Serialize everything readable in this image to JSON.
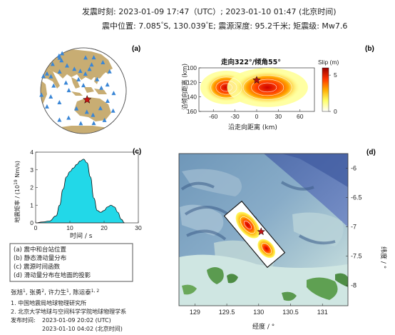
{
  "header": {
    "line1_label": "发震时刻: 2023-01-09 17:47（UTC）;   2023-01-10  01:47 (北京时间)",
    "epicenter_prefix": "震中位置: 7.085",
    "epicenter_lat_hemi": "S,  130.039",
    "epicenter_lon_hemi": "E;  震源深度: 95.2千米; 矩震级: Mw7.6",
    "degree_sign": "°"
  },
  "panel_labels": {
    "a": "(a)",
    "b": "(b)",
    "c": "(c)",
    "d": "(d)"
  },
  "panel_a": {
    "land_color": "#c8ad73",
    "ocean_color": "#ffffff",
    "station_color": "#3a86d6",
    "epicenter_color": "#cc1111",
    "stations": [
      {
        "lon": 30,
        "lat": 60
      },
      {
        "lon": 42,
        "lat": 55
      },
      {
        "lon": 60,
        "lat": 52
      },
      {
        "lon": 75,
        "lat": 48
      },
      {
        "lon": 95,
        "lat": 40
      },
      {
        "lon": 110,
        "lat": 35
      },
      {
        "lon": 120,
        "lat": 32
      },
      {
        "lon": 128,
        "lat": 28
      },
      {
        "lon": 135,
        "lat": 35
      },
      {
        "lon": 140,
        "lat": 42
      },
      {
        "lon": 145,
        "lat": 20
      },
      {
        "lon": 150,
        "lat": 8
      },
      {
        "lon": 160,
        "lat": 12
      },
      {
        "lon": 170,
        "lat": 0
      },
      {
        "lon": 118,
        "lat": 20
      },
      {
        "lon": 100,
        "lat": 15
      },
      {
        "lon": 80,
        "lat": 10
      },
      {
        "lon": 70,
        "lat": 22
      },
      {
        "lon": 55,
        "lat": 25
      },
      {
        "lon": 40,
        "lat": 20
      },
      {
        "lon": 85,
        "lat": 30
      },
      {
        "lon": 105,
        "lat": 5
      },
      {
        "lon": 125,
        "lat": 12
      },
      {
        "lon": 115,
        "lat": -20
      },
      {
        "lon": 130,
        "lat": -25
      },
      {
        "lon": 140,
        "lat": -30
      },
      {
        "lon": 150,
        "lat": -20
      },
      {
        "lon": 160,
        "lat": -10
      },
      {
        "lon": 165,
        "lat": -40
      },
      {
        "lon": 145,
        "lat": -45
      },
      {
        "lon": 120,
        "lat": -45
      },
      {
        "lon": 100,
        "lat": -35
      },
      {
        "lon": 78,
        "lat": -40
      },
      {
        "lon": 60,
        "lat": -20
      },
      {
        "lon": 75,
        "lat": -5
      },
      {
        "lon": 90,
        "lat": -12
      },
      {
        "lon": 175,
        "lat": -25
      },
      {
        "lon": 170,
        "lat": 30
      },
      {
        "lon": 165,
        "lat": 45
      },
      {
        "lon": 150,
        "lat": 55
      },
      {
        "lon": 55,
        "lat": 40
      },
      {
        "lon": 45,
        "lat": -5
      },
      {
        "lon": 130,
        "lat": 55
      }
    ],
    "epicenter": {
      "lon": 130.039,
      "lat": -7.085
    }
  },
  "panel_b": {
    "title": "走向322°/倾角55°",
    "xlabel": "沿走向距离 (km)",
    "ylabel": "沿倾向距离 (km)",
    "colorbar_label": "Slip (m)",
    "x_ticks": [
      "-60",
      "-30",
      "0",
      "30",
      "60"
    ],
    "y_ticks": [
      "100",
      "120",
      "140",
      "160"
    ],
    "cbar_ticks": [
      "0",
      "5"
    ],
    "x_range": [
      -80,
      80
    ],
    "y_range": [
      100,
      160
    ],
    "cbar_range": [
      0,
      6
    ],
    "hypocenter": {
      "x": 0,
      "y": 117
    },
    "patches": [
      {
        "x": -42,
        "y": 127,
        "peak": 4.5,
        "rx": 18,
        "ry": 12
      },
      {
        "x": 15,
        "y": 127,
        "peak": 5.8,
        "rx": 28,
        "ry": 14
      }
    ]
  },
  "panel_c": {
    "ylabel": "地震矩率 / (10",
    "ylabel_exp": "19",
    "ylabel_tail": " Nm/s)",
    "xlabel": "时间 / s",
    "x_ticks": [
      "0",
      "10",
      "20",
      "30"
    ],
    "y_ticks": [
      "0",
      "1",
      "2",
      "3",
      "4"
    ],
    "x_range": [
      0,
      30
    ],
    "y_range": [
      0,
      4
    ],
    "fill_color": "#22d8e8",
    "chart_data": {
      "type": "area",
      "x": [
        0,
        2,
        4,
        6,
        7,
        8,
        9,
        10,
        11,
        12,
        13,
        14,
        15,
        16,
        17,
        18,
        19,
        20,
        21,
        22,
        23,
        24,
        25,
        26
      ],
      "y": [
        0,
        0.05,
        0.1,
        0.4,
        1.0,
        1.9,
        2.6,
        2.9,
        3.1,
        3.3,
        3.5,
        3.6,
        3.4,
        2.6,
        1.4,
        0.7,
        0.6,
        0.7,
        0.9,
        1.0,
        0.9,
        0.6,
        0.2,
        0
      ]
    }
  },
  "legend": {
    "items": [
      "(a) 震中和台站位置",
      "(b) 静态滑动量分布",
      "(c) 震源时间函数",
      "(d) 滑动量分布在地面的投影"
    ]
  },
  "credits": {
    "authors": [
      "张旭",
      "1",
      ", 张勇",
      "2",
      ", 许力生",
      "1",
      ", 陈运泰",
      "1, 2"
    ],
    "affiliations": [
      "1. 中国地震局地球物理研究所",
      "2. 北京大学地球与空间科学学院地球物理学系"
    ],
    "release_label": "发布时间:",
    "release_utc": "2023-01-09  20:02 (UTC)",
    "release_bj": "2023-01-10  04:02 (北京时间)"
  },
  "panel_d": {
    "xlabel": "经度 / °",
    "ylabel": "纬度 / °",
    "x_ticks": [
      "129",
      "129.5",
      "130",
      "130.5",
      "131"
    ],
    "y_ticks": [
      "-6",
      "-6.5",
      "-7",
      "-7.5",
      "-8"
    ],
    "x_range": [
      128.75,
      131.4
    ],
    "y_range": [
      -8.35,
      -5.75
    ],
    "epicenter": {
      "lon": 130.039,
      "lat": -7.085
    }
  }
}
